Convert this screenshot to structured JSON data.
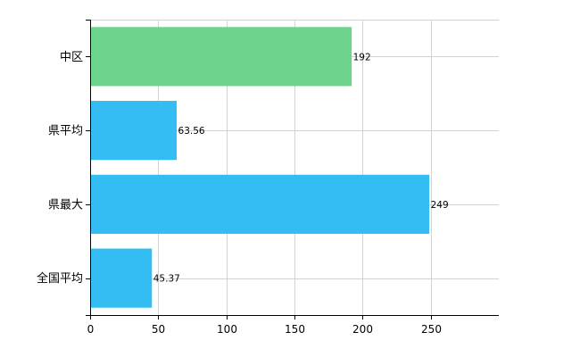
{
  "chart_data": {
    "type": "bar",
    "orientation": "horizontal",
    "categories": [
      "中区",
      "県平均",
      "県最大",
      "全国平均"
    ],
    "values": [
      192,
      63.56,
      249,
      45.37
    ],
    "value_labels": [
      "192",
      "63.56",
      "249",
      "45.37"
    ],
    "bar_colors": [
      "#6cd48d",
      "#33bdf2",
      "#33bdf2",
      "#33bdf2"
    ],
    "xlim": [
      0,
      300
    ],
    "x_ticks": [
      0,
      50,
      100,
      150,
      200,
      250
    ],
    "grid": true,
    "grid_color": "#d3d3d3",
    "axis_color": "#000000",
    "title": "",
    "xlabel": "",
    "ylabel": ""
  }
}
